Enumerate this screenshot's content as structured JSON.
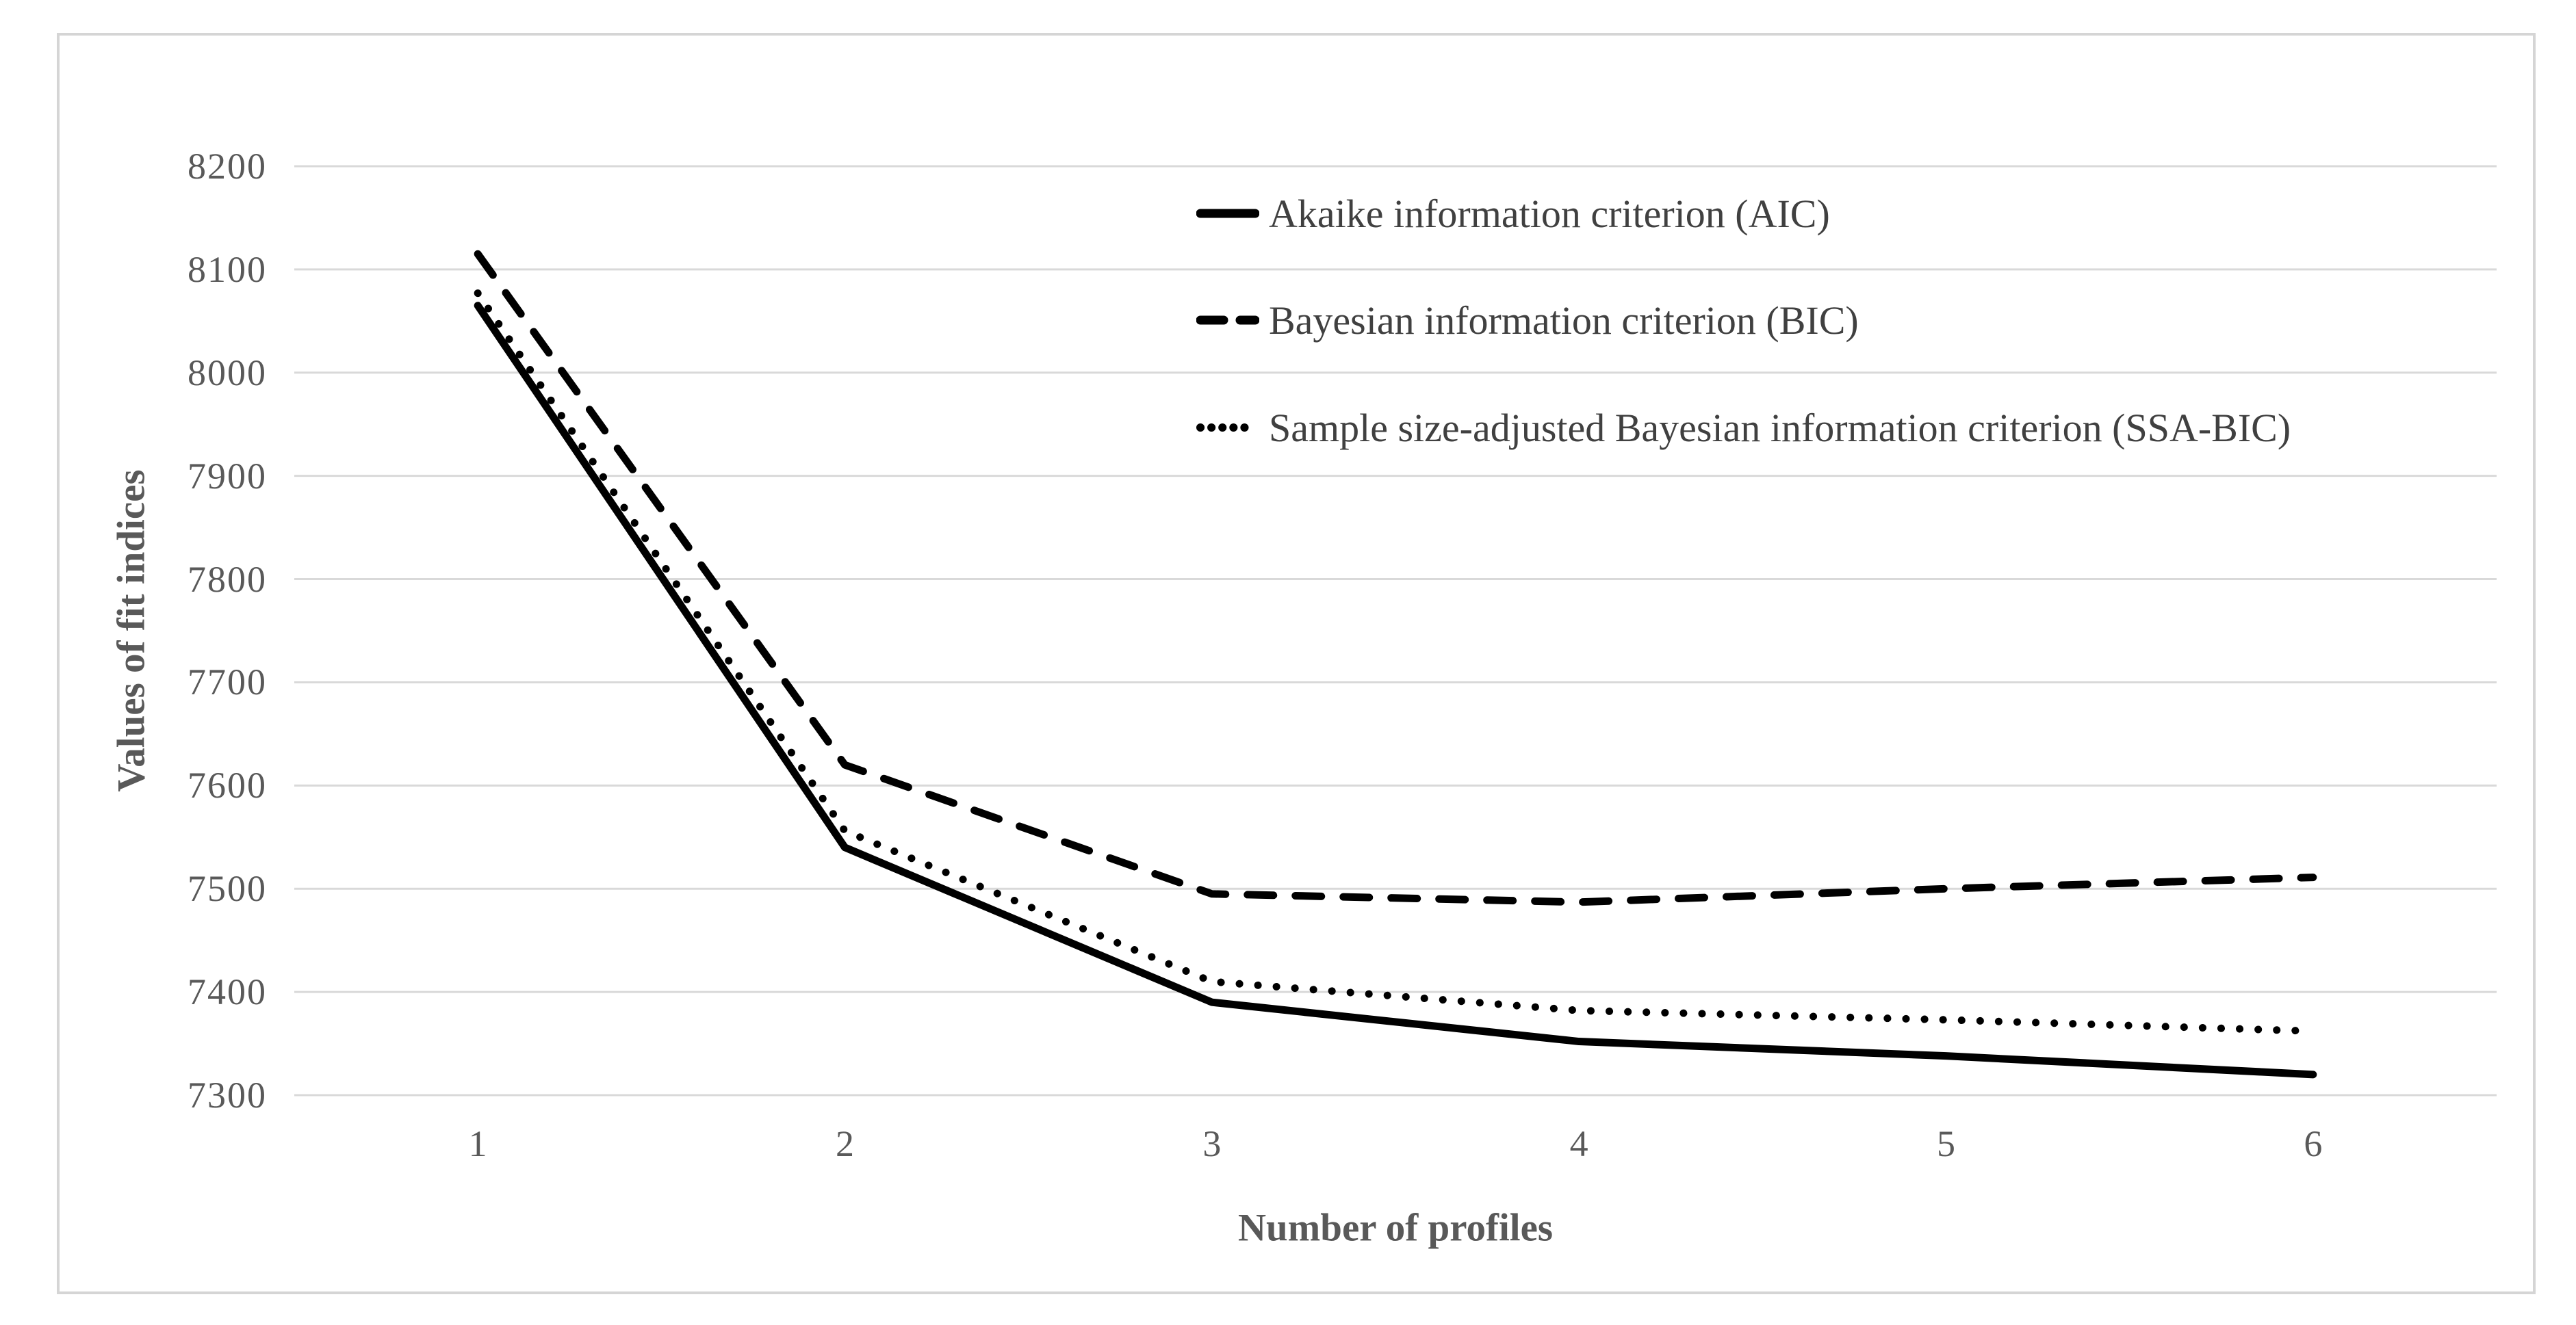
{
  "chart_data": {
    "type": "line",
    "title": "",
    "xlabel": "Number of profiles",
    "ylabel": "Values of fit indices",
    "categories": [
      "1",
      "2",
      "3",
      "4",
      "5",
      "6"
    ],
    "series": [
      {
        "id": "aic",
        "style": "solid",
        "name": "Akaike information criterion (AIC)",
        "values": [
          8065,
          7540,
          7390,
          7352,
          7338,
          7320
        ]
      },
      {
        "id": "bic",
        "style": "dashed",
        "name": "Bayesian information criterion (BIC)",
        "values": [
          8115,
          7620,
          7495,
          7487,
          7500,
          7511
        ]
      },
      {
        "id": "ssa-bic",
        "style": "dotted",
        "name": "Sample size-adjusted Bayesian information criterion (SSA-BIC)",
        "values": [
          8077,
          7556,
          7410,
          7382,
          7373,
          7362
        ]
      }
    ],
    "ylim": [
      7300,
      8200
    ],
    "ytick_step": 100,
    "ytick_labels": [
      "8200",
      "8100",
      "8000",
      "7900",
      "7800",
      "7700",
      "7600",
      "7500",
      "7400",
      "7300"
    ],
    "grid": true,
    "legend_position": "upper-right-inside"
  },
  "colors": {
    "series_line": "#000000",
    "gridline": "#d9d9d9",
    "frame_border": "#d5d5d5",
    "tick_text": "#595959",
    "axis_title_text": "#595959",
    "legend_text": "#404040",
    "background": "#ffffff"
  }
}
